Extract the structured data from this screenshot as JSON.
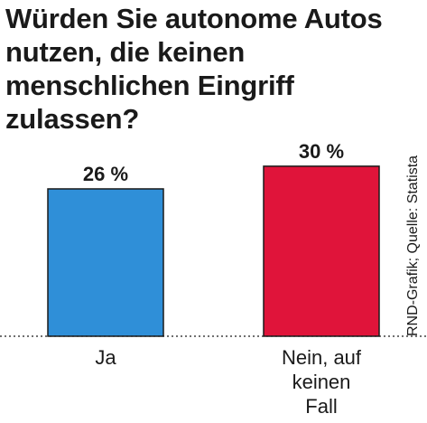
{
  "title": "Würden Sie autonome Autos\nnutzen, die keinen\nmenschlichen Eingriff\nzulassen?",
  "source": "RND-Grafik; Quelle: Statista",
  "colors": {
    "bar_ja": "#2f8fd8",
    "bar_nein": "#e0143a",
    "text": "#1a1a1a"
  },
  "chart_data": {
    "type": "bar",
    "title": "Würden Sie autonome Autos nutzen, die keinen menschlichen Eingriff zulassen?",
    "categories": [
      "Ja",
      "Nein, auf keinen Fall"
    ],
    "category_lines": [
      [
        "Ja"
      ],
      [
        "Nein, auf",
        "keinen",
        "Fall"
      ]
    ],
    "values": [
      26,
      30
    ],
    "value_labels": [
      "26 %",
      "30 %"
    ],
    "unit": "%",
    "xlabel": "",
    "ylabel": "",
    "ylim": [
      0,
      36
    ],
    "grid": false,
    "baseline_style": "dotted"
  }
}
